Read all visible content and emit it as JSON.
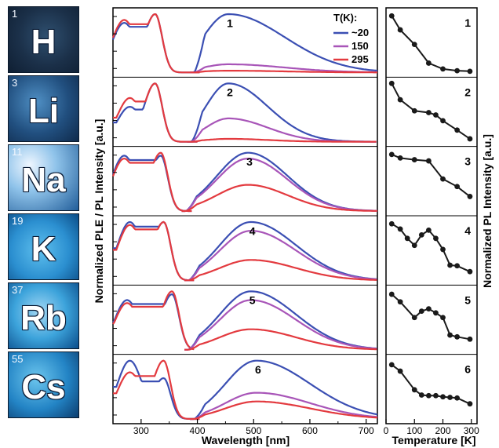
{
  "elements": [
    {
      "number": "1",
      "symbol": "H"
    },
    {
      "number": "3",
      "symbol": "Li"
    },
    {
      "number": "11",
      "symbol": "Na"
    },
    {
      "number": "19",
      "symbol": "K"
    },
    {
      "number": "37",
      "symbol": "Rb"
    },
    {
      "number": "55",
      "symbol": "Cs"
    }
  ],
  "chart_data": [
    {
      "type": "line",
      "title": "",
      "xlabel": "Wavelength [nm]",
      "ylabel": "Normalized PLE / PL Intensity [a.u.]",
      "xlim": [
        250,
        720
      ],
      "xticks": [
        "300",
        "400",
        "500",
        "600",
        "700"
      ],
      "legend": {
        "title": "T(K):",
        "placement": "top-right",
        "entries": [
          {
            "label": "~20",
            "color": "#3b4fb3"
          },
          {
            "label": "150",
            "color": "#a855b8"
          },
          {
            "label": "295",
            "color": "#e33a3f"
          }
        ]
      },
      "panels": [
        {
          "label": "1",
          "ple": {
            "peak_a": 270,
            "val_a": 0.85,
            "peak_b": 325,
            "val_b": 1.0,
            "edge": 360,
            "ple295": {
              "val_a": 0.9,
              "val_b": 1.0
            }
          },
          "pl": {
            "onset": 395,
            "peak": 455,
            "width_l": 45,
            "width_r": 100,
            "amp20": 1.0,
            "amp150": 0.14,
            "amp295": 0.03
          }
        },
        {
          "label": "2",
          "ple": {
            "peak_a": 280,
            "val_a": 0.6,
            "peak_b": 325,
            "val_b": 1.0,
            "edge": 365,
            "ple295": {
              "val_a": 0.75,
              "val_b": 1.0
            }
          },
          "pl": {
            "onset": 390,
            "peak": 455,
            "width_l": 40,
            "width_r": 70,
            "amp20": 1.0,
            "amp150": 0.4,
            "amp295": 0.05
          }
        },
        {
          "label": "3",
          "ple": {
            "peak_a": 270,
            "val_a": 0.95,
            "peak_b": 335,
            "val_b": 0.95,
            "edge": 370,
            "ple295": {
              "val_a": 0.9,
              "val_b": 1.0
            }
          },
          "pl": {
            "onset": 380,
            "peak": 490,
            "width_l": 55,
            "width_r": 70,
            "amp20": 1.0,
            "amp150": 0.9,
            "amp295": 0.45
          }
        },
        {
          "label": "4",
          "ple": {
            "peak_a": 280,
            "val_a": 1.0,
            "peak_b": 340,
            "val_b": 1.0,
            "edge": 375,
            "ple295": {
              "val_a": 0.95,
              "val_b": 1.0
            }
          },
          "pl": {
            "onset": 385,
            "peak": 495,
            "width_l": 55,
            "width_r": 80,
            "amp20": 1.0,
            "amp150": 0.85,
            "amp295": 0.35
          }
        },
        {
          "label": "5",
          "ple": {
            "peak_a": 275,
            "val_a": 0.85,
            "peak_b": 355,
            "val_b": 0.95,
            "edge": 375,
            "ple295": {
              "val_a": 0.8,
              "val_b": 1.0
            }
          },
          "pl": {
            "onset": 385,
            "peak": 495,
            "width_l": 55,
            "width_r": 80,
            "amp20": 1.0,
            "amp150": 0.85,
            "amp295": 0.35
          }
        },
        {
          "label": "6",
          "ple": {
            "peak_a": 280,
            "val_a": 1.0,
            "peak_b": 340,
            "val_b": 0.7,
            "edge": 380,
            "ple295": {
              "val_a": 0.8,
              "val_b": 1.0
            }
          },
          "pl": {
            "onset": 395,
            "peak": 505,
            "width_l": 55,
            "width_r": 95,
            "amp20": 1.0,
            "amp150": 0.45,
            "amp295": 0.3
          }
        }
      ]
    },
    {
      "type": "line",
      "title": "",
      "xlabel": "Temperature [K]",
      "ylabel": "Normalized PL Intensity [a.u.]",
      "xlim": [
        0,
        320
      ],
      "xticks": [
        "0",
        "100",
        "200",
        "300"
      ],
      "color": "#1a1a1a",
      "panels": [
        {
          "label": "1",
          "x": [
            20,
            50,
            100,
            150,
            200,
            250,
            295
          ],
          "y": [
            0.97,
            0.73,
            0.48,
            0.16,
            0.06,
            0.03,
            0.02
          ]
        },
        {
          "label": "2",
          "x": [
            20,
            50,
            100,
            150,
            175,
            200,
            250,
            295
          ],
          "y": [
            1.0,
            0.72,
            0.53,
            0.5,
            0.46,
            0.36,
            0.2,
            0.05
          ]
        },
        {
          "label": "3",
          "x": [
            20,
            50,
            100,
            150,
            200,
            250,
            295
          ],
          "y": [
            0.97,
            0.91,
            0.88,
            0.86,
            0.55,
            0.42,
            0.25
          ]
        },
        {
          "label": "4",
          "x": [
            20,
            50,
            75,
            100,
            125,
            150,
            175,
            200,
            225,
            250,
            295
          ],
          "y": [
            0.97,
            0.88,
            0.72,
            0.6,
            0.78,
            0.86,
            0.72,
            0.53,
            0.26,
            0.25,
            0.15
          ]
        },
        {
          "label": "5",
          "x": [
            20,
            50,
            100,
            125,
            150,
            175,
            200,
            225,
            250,
            295
          ],
          "y": [
            0.95,
            0.82,
            0.55,
            0.66,
            0.7,
            0.63,
            0.55,
            0.25,
            0.22,
            0.18
          ]
        },
        {
          "label": "6",
          "x": [
            20,
            50,
            100,
            125,
            150,
            175,
            200,
            225,
            250,
            295
          ],
          "y": [
            0.93,
            0.82,
            0.5,
            0.41,
            0.4,
            0.4,
            0.38,
            0.37,
            0.36,
            0.26
          ]
        }
      ]
    }
  ]
}
